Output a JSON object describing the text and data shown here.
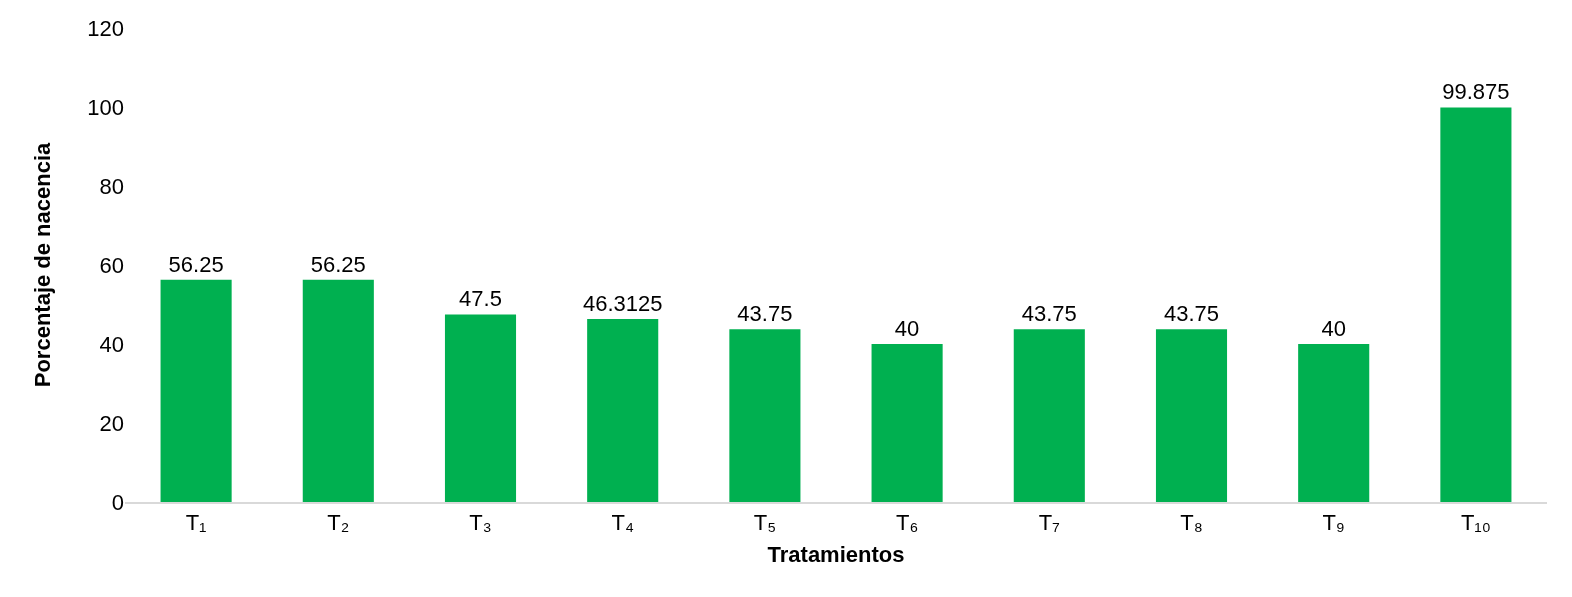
{
  "chart_data": {
    "type": "bar",
    "xlabel": "Tratamientos",
    "ylabel": "Porcentaje de nacencia",
    "categories": [
      "T₁",
      "T₂",
      "T₃",
      "T₄",
      "T₅",
      "T₆",
      "T₇",
      "T₈",
      "T₉",
      "T₁₀"
    ],
    "values": [
      56.25,
      56.25,
      47.5,
      46.3125,
      43.75,
      40,
      43.75,
      43.75,
      40,
      99.875
    ],
    "color": "#00b050",
    "ylim": [
      0,
      120
    ],
    "yticks": [
      0,
      20,
      40,
      60,
      80,
      100,
      120
    ],
    "legend": false,
    "data_labels": true
  }
}
